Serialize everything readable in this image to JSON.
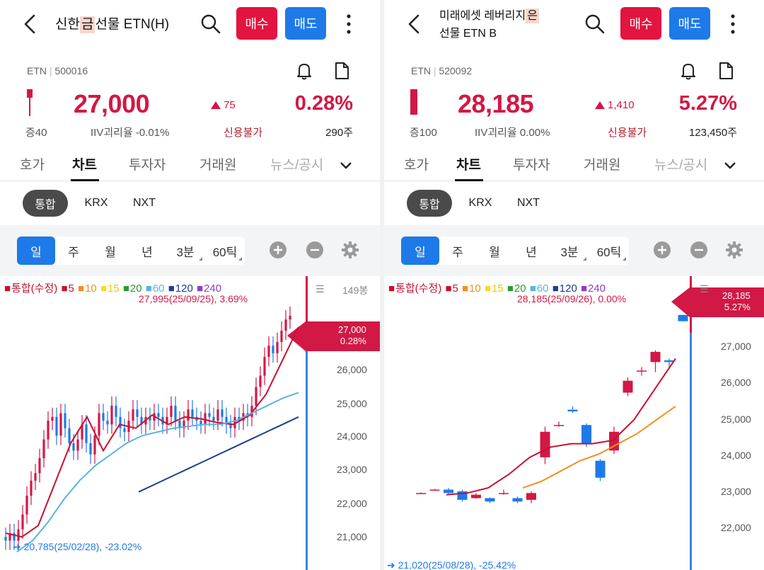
{
  "left": {
    "title_pre": "신한 ",
    "title_hl": "금",
    "title_post": " 선물 ETN(H)",
    "buy": "매수",
    "sell": "매도",
    "type": "ETN",
    "code": "500016",
    "price": "27,000",
    "change": "75",
    "change_pct": "0.28%",
    "volume_label": "증40",
    "iiv": "IIV괴리율 -0.01%",
    "credit": "신용불가",
    "volume": "290주",
    "tabs": [
      "호가",
      "차트",
      "투자자",
      "거래원",
      "뉴스/공시"
    ],
    "markets": [
      "통합",
      "KRX",
      "NXT"
    ],
    "periods": [
      "일",
      "주",
      "월",
      "년",
      "3분",
      "60틱"
    ],
    "legend": {
      "base": "통합(수정)",
      "ma": [
        "5",
        "10",
        "15",
        "20",
        "60",
        "120",
        "240"
      ]
    },
    "unit": "149봉",
    "yticks": [
      "26,000",
      "25,000",
      "24,000",
      "23,000",
      "22,000",
      "21,000"
    ],
    "tag_price": "27,000",
    "tag_pct": "0.28%",
    "hi_note": "27,995(25/09/25), 3.69%",
    "lo_note": "20,785(25/02/28), -23.02%"
  },
  "right": {
    "title_pre": "미래에셋 레버리지 ",
    "title_hl": "은",
    "title_post": " 선물 ETN B",
    "buy": "매수",
    "sell": "매도",
    "type": "ETN",
    "code": "520092",
    "price": "28,185",
    "change": "1,410",
    "change_pct": "5.27%",
    "volume_label": "증100",
    "iiv": "IIV괴리율 0.00%",
    "credit": "신용불가",
    "volume": "123,450주",
    "tabs": [
      "호가",
      "차트",
      "투자자",
      "거래원",
      "뉴스/공시"
    ],
    "markets": [
      "통합",
      "KRX",
      "NXT"
    ],
    "periods": [
      "일",
      "주",
      "월",
      "년",
      "3분",
      "60틱"
    ],
    "legend": {
      "base": "통합(수정)",
      "ma": [
        "5",
        "10",
        "15",
        "20",
        "60",
        "120",
        "240"
      ]
    },
    "yticks": [
      "27,000",
      "26,000",
      "25,000",
      "24,000",
      "23,000",
      "22,000"
    ],
    "tag_price": "28,185",
    "tag_pct": "5.27%",
    "hi_note": "28,185(25/09/26), 0.00%",
    "lo_note": "21,020(25/08/28), -25.42%"
  },
  "colors": {
    "up": "#d21845",
    "down": "#1e7ae8",
    "ma5": "#c8102e",
    "ma10": "#f0901e",
    "ma15": "#f5dc2a",
    "ma20": "#2e9a2e",
    "ma60": "#5ab4e0",
    "ma120": "#1c3f8f",
    "ma240": "#8a3fc8"
  },
  "chart_data": [
    {
      "type": "line",
      "title": "신한 금 선물 ETN(H)",
      "ylim": [
        20500,
        27300
      ],
      "series": [
        {
          "name": "5",
          "values": [
            21200,
            21100,
            21400,
            22500,
            23600,
            24300,
            23400,
            24100,
            24000,
            24350,
            24100,
            24300,
            24250,
            24150,
            24100,
            24350,
            24900,
            25800,
            26700
          ]
        },
        {
          "name": "60",
          "values": [
            20700,
            21000,
            21500,
            22100,
            22600,
            23000,
            23300,
            23600,
            23800,
            23900,
            24000,
            24050,
            24100,
            24100,
            24200,
            24400,
            24600,
            24800,
            24950
          ]
        },
        {
          "name": "120",
          "values": [
            22300,
            22500,
            22700,
            22900,
            23100,
            23300,
            23500,
            23700,
            23900,
            24100,
            24300
          ]
        }
      ]
    },
    {
      "type": "line",
      "title": "미래에셋 레버리지 은 선물 ETN B",
      "ylim": [
        21000,
        28700
      ],
      "series": [
        {
          "name": "5",
          "values": [
            22900,
            22950,
            23100,
            23500,
            24000,
            24300,
            24400,
            24400,
            24500,
            25100,
            26000,
            26900
          ]
        },
        {
          "name": "10",
          "values": [
            23100,
            23300,
            23600,
            23900,
            24100,
            24400,
            24700,
            25100,
            25500
          ]
        }
      ]
    }
  ]
}
